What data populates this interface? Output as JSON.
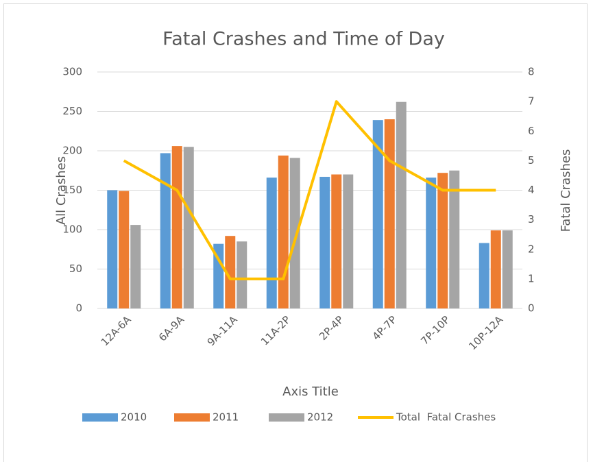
{
  "chart_data": {
    "type": "bar",
    "title": "Fatal Crashes and Time of Day",
    "x_label": "Axis Title",
    "y_label": "All Crashes",
    "y2_label": "Fatal Crashes",
    "categories": [
      "12A-6A",
      "6A-9A",
      "9A-11A",
      "11A-2P",
      "2P-4P",
      "4P-7P",
      "7P-10P",
      "10P-12A"
    ],
    "series": [
      {
        "name": "2010",
        "color": "#5b9bd5",
        "values": [
          150,
          197,
          82,
          166,
          167,
          239,
          166,
          83
        ]
      },
      {
        "name": "2011",
        "color": "#ed7d31",
        "values": [
          149,
          206,
          92,
          194,
          170,
          240,
          172,
          99
        ]
      },
      {
        "name": "2012",
        "color": "#a5a5a5",
        "values": [
          106,
          205,
          85,
          191,
          170,
          262,
          175,
          99
        ]
      },
      {
        "name": "Total  Fatal Crashes",
        "color": "#ffc000",
        "type": "line",
        "axis": "y2",
        "values": [
          5,
          4,
          1,
          1,
          7,
          5,
          4,
          4
        ]
      }
    ],
    "ylim": [
      0,
      300
    ],
    "yticks": [
      0,
      50,
      100,
      150,
      200,
      250,
      300
    ],
    "y2lim": [
      0,
      8
    ],
    "y2ticks": [
      0,
      1,
      2,
      3,
      4,
      5,
      6,
      7,
      8
    ],
    "grid": true,
    "legend": "bottom"
  }
}
